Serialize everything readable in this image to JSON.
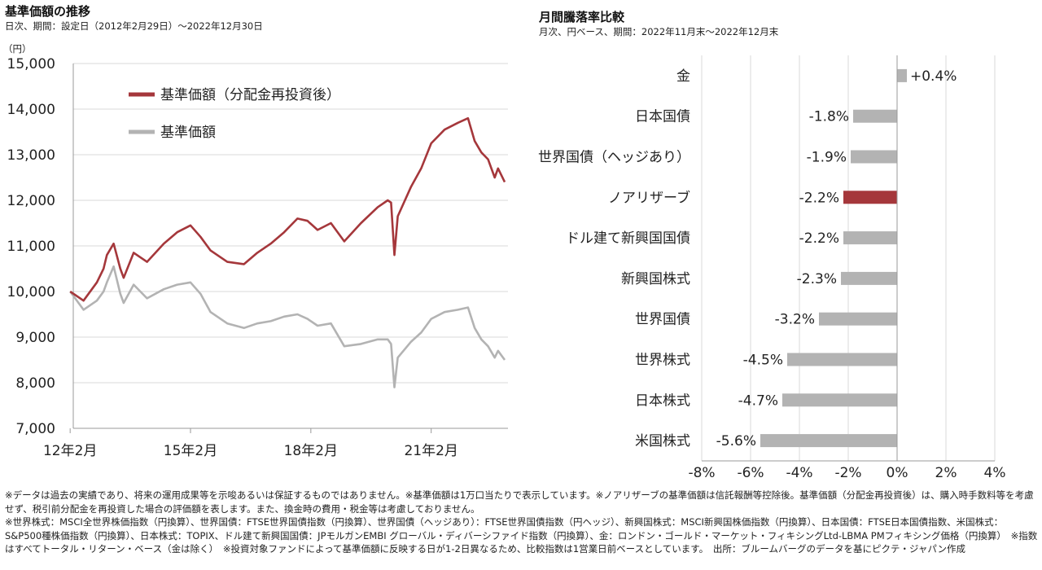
{
  "left_panel": {
    "title": "基準価額の推移",
    "subtitle": "日次、期間：設定日（2012年2月29日）～2022年12月30日",
    "unit_label": "（円）"
  },
  "right_panel": {
    "title": "月間騰落率比較",
    "subtitle": "月次、円ベース、期間：2022年11月末～2022年12月末"
  },
  "colors": {
    "nav_reinvested": "#a5373b",
    "nav": "#b3b3b3",
    "bar_default": "#b3b3b3",
    "bar_highlight": "#a5373b",
    "grid": "#d9d9d9",
    "axis": "#9a9a9a"
  },
  "chart_data": [
    {
      "type": "line",
      "title": "",
      "xlabel": "",
      "ylabel": "（円）",
      "ylim": [
        7000,
        15000
      ],
      "xlim": [
        "2012-02-29",
        "2022-12-30"
      ],
      "x_ticks": [
        "12年2月",
        "15年2月",
        "18年2月",
        "21年2月"
      ],
      "y_ticks": [
        "7,000",
        "8,000",
        "9,000",
        "10,000",
        "11,000",
        "12,000",
        "13,000",
        "14,000",
        "15,000"
      ],
      "legend_position": "top-left",
      "grid": true,
      "series": [
        {
          "name": "基準価額（分配金再投資後）",
          "color": "#a5373b",
          "x": [
            "2012-02",
            "2012-06",
            "2012-10",
            "2012-12",
            "2013-01",
            "2013-03",
            "2013-05",
            "2013-06",
            "2013-09",
            "2014-01",
            "2014-06",
            "2014-10",
            "2015-02",
            "2015-05",
            "2015-08",
            "2016-01",
            "2016-06",
            "2016-10",
            "2017-02",
            "2017-06",
            "2017-10",
            "2018-01",
            "2018-04",
            "2018-08",
            "2018-12",
            "2019-05",
            "2019-10",
            "2020-01",
            "2020-02",
            "2020-03",
            "2020-04",
            "2020-08",
            "2020-11",
            "2021-02",
            "2021-06",
            "2021-10",
            "2022-01",
            "2022-03",
            "2022-05",
            "2022-07",
            "2022-09",
            "2022-10",
            "2022-12"
          ],
          "values": [
            10000,
            9800,
            10200,
            10500,
            10800,
            11050,
            10500,
            10300,
            10850,
            10650,
            11050,
            11300,
            11450,
            11200,
            10900,
            10650,
            10600,
            10850,
            11050,
            11300,
            11600,
            11550,
            11350,
            11500,
            11100,
            11500,
            11850,
            12000,
            11950,
            10800,
            11650,
            12300,
            12700,
            13250,
            13550,
            13700,
            13800,
            13300,
            13050,
            12900,
            12500,
            12700,
            12400
          ]
        },
        {
          "name": "基準価額",
          "color": "#b3b3b3",
          "x": [
            "2012-02",
            "2012-06",
            "2012-10",
            "2012-12",
            "2013-01",
            "2013-03",
            "2013-05",
            "2013-06",
            "2013-09",
            "2014-01",
            "2014-06",
            "2014-10",
            "2015-02",
            "2015-05",
            "2015-08",
            "2016-01",
            "2016-06",
            "2016-10",
            "2017-02",
            "2017-06",
            "2017-10",
            "2018-01",
            "2018-04",
            "2018-08",
            "2018-12",
            "2019-05",
            "2019-10",
            "2020-01",
            "2020-02",
            "2020-03",
            "2020-04",
            "2020-08",
            "2020-11",
            "2021-02",
            "2021-06",
            "2021-10",
            "2022-01",
            "2022-03",
            "2022-05",
            "2022-07",
            "2022-09",
            "2022-10",
            "2022-12"
          ],
          "values": [
            10000,
            9600,
            9800,
            10000,
            10200,
            10550,
            9950,
            9750,
            10150,
            9850,
            10050,
            10150,
            10200,
            9950,
            9550,
            9300,
            9200,
            9300,
            9350,
            9450,
            9500,
            9400,
            9250,
            9300,
            8800,
            8850,
            8950,
            8950,
            8850,
            7900,
            8550,
            8900,
            9100,
            9400,
            9550,
            9600,
            9650,
            9200,
            8950,
            8800,
            8550,
            8700,
            8500
          ]
        }
      ]
    },
    {
      "type": "bar",
      "orientation": "horizontal",
      "title": "",
      "xlabel": "",
      "ylabel": "",
      "xlim": [
        -8,
        4
      ],
      "x_ticks": [
        "-8%",
        "-6%",
        "-4%",
        "-2%",
        "0%",
        "2%",
        "4%"
      ],
      "grid": true,
      "categories": [
        "金",
        "日本国債",
        "世界国債（ヘッジあり）",
        "ノアリザーブ",
        "ドル建て新興国国債",
        "新興国株式",
        "世界国債",
        "世界株式",
        "日本株式",
        "米国株式"
      ],
      "values": [
        0.4,
        -1.8,
        -1.9,
        -2.2,
        -2.2,
        -2.3,
        -3.2,
        -4.5,
        -4.7,
        -5.6
      ],
      "value_labels": [
        "+0.4%",
        "-1.8%",
        "-1.9%",
        "-2.2%",
        "-2.2%",
        "-2.3%",
        "-3.2%",
        "-4.5%",
        "-4.7%",
        "-5.6%"
      ],
      "highlight_category": "ノアリザーブ"
    }
  ],
  "footnotes": [
    "※データは過去の実績であり、将来の運用成果等を示唆あるいは保証するものではありません。※基準価額は1万口当たりで表示しています。※ノアリザーブの基準価額は信託報酬等控除後。基準価額（分配金再投資後）は、購入時手数料等を考慮せず、税引前分配金を再投資した場合の評価額を表します。また、換金時の費用・税金等は考慮しておりません。",
    "※世界株式：MSCI全世界株価指数（円換算）、世界国債：FTSE世界国債指数（円換算）、世界国債（ヘッジあり）：FTSE世界国債指数（円ヘッジ）、新興国株式：MSCI新興国株価指数（円換算）、日本国債：FTSE日本国債指数、米国株式：S&P500種株価指数（円換算）、日本株式：TOPIX、ドル建て新興国国債：JPモルガンEMBI グローバル・ディバーシファイド指数（円換算）、金：ロンドン・ゴールド・マーケット・フィキシングLtd-LBMA PMフィキシング価格（円換算）　※指数はすべてトータル・リターン・ベース（金は除く）　※投資対象ファンドによって基準価額に反映する日が1-2日異なるため、比較指数は1営業日前ベースとしています。　出所：ブルームバーグのデータを基にピクテ・ジャパン作成"
  ]
}
